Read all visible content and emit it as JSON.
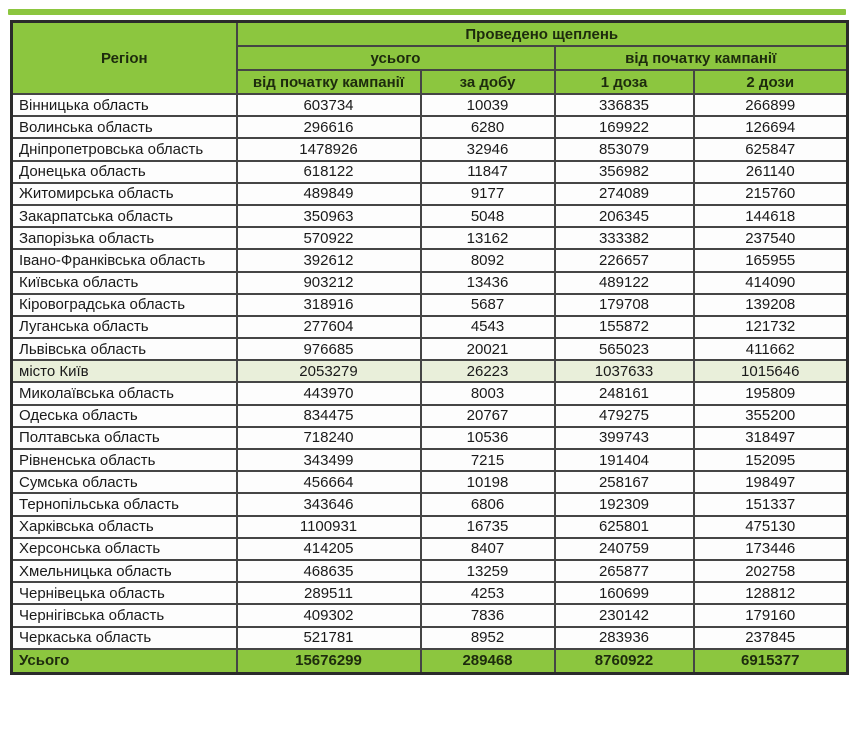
{
  "page": {
    "accent_green": "#8cc63f",
    "highlight_green": "#e9efda",
    "border_color": "#454545"
  },
  "chart_data": {
    "type": "table",
    "header": {
      "region": "Регіон",
      "group": "Проведено щеплень",
      "group_total": "усього",
      "group_campaign": "від початку кампанії",
      "columns": [
        "від початку кампанії",
        "за добу",
        "1 доза",
        "2 дози"
      ]
    },
    "highlight_region": "місто Київ",
    "rows": [
      {
        "region": "Вінницька область",
        "values": [
          603734,
          10039,
          336835,
          266899
        ]
      },
      {
        "region": "Волинська область",
        "values": [
          296616,
          6280,
          169922,
          126694
        ]
      },
      {
        "region": "Дніпропетровська область",
        "values": [
          1478926,
          32946,
          853079,
          625847
        ]
      },
      {
        "region": "Донецька область",
        "values": [
          618122,
          11847,
          356982,
          261140
        ]
      },
      {
        "region": "Житомирська область",
        "values": [
          489849,
          9177,
          274089,
          215760
        ]
      },
      {
        "region": "Закарпатська область",
        "values": [
          350963,
          5048,
          206345,
          144618
        ]
      },
      {
        "region": "Запорізька область",
        "values": [
          570922,
          13162,
          333382,
          237540
        ]
      },
      {
        "region": "Івано-Франківська область",
        "values": [
          392612,
          8092,
          226657,
          165955
        ]
      },
      {
        "region": "Київська область",
        "values": [
          903212,
          13436,
          489122,
          414090
        ]
      },
      {
        "region": "Кіровоградська область",
        "values": [
          318916,
          5687,
          179708,
          139208
        ]
      },
      {
        "region": "Луганська область",
        "values": [
          277604,
          4543,
          155872,
          121732
        ]
      },
      {
        "region": "Львівська область",
        "values": [
          976685,
          20021,
          565023,
          411662
        ]
      },
      {
        "region": "місто Київ",
        "values": [
          2053279,
          26223,
          1037633,
          1015646
        ]
      },
      {
        "region": "Миколаївська область",
        "values": [
          443970,
          8003,
          248161,
          195809
        ]
      },
      {
        "region": "Одеська область",
        "values": [
          834475,
          20767,
          479275,
          355200
        ]
      },
      {
        "region": "Полтавська область",
        "values": [
          718240,
          10536,
          399743,
          318497
        ]
      },
      {
        "region": "Рівненська область",
        "values": [
          343499,
          7215,
          191404,
          152095
        ]
      },
      {
        "region": "Сумська область",
        "values": [
          456664,
          10198,
          258167,
          198497
        ]
      },
      {
        "region": "Тернопільська область",
        "values": [
          343646,
          6806,
          192309,
          151337
        ]
      },
      {
        "region": "Харківська область",
        "values": [
          1100931,
          16735,
          625801,
          475130
        ]
      },
      {
        "region": "Херсонська область",
        "values": [
          414205,
          8407,
          240759,
          173446
        ]
      },
      {
        "region": "Хмельницька область",
        "values": [
          468635,
          13259,
          265877,
          202758
        ]
      },
      {
        "region": "Чернівецька область",
        "values": [
          289511,
          4253,
          160699,
          128812
        ]
      },
      {
        "region": "Чернігівська область",
        "values": [
          409302,
          7836,
          230142,
          179160
        ]
      },
      {
        "region": "Черкаська область",
        "values": [
          521781,
          8952,
          283936,
          237845
        ]
      }
    ],
    "total": {
      "label": "Усього",
      "values": [
        15676299,
        289468,
        8760922,
        6915377
      ]
    }
  }
}
